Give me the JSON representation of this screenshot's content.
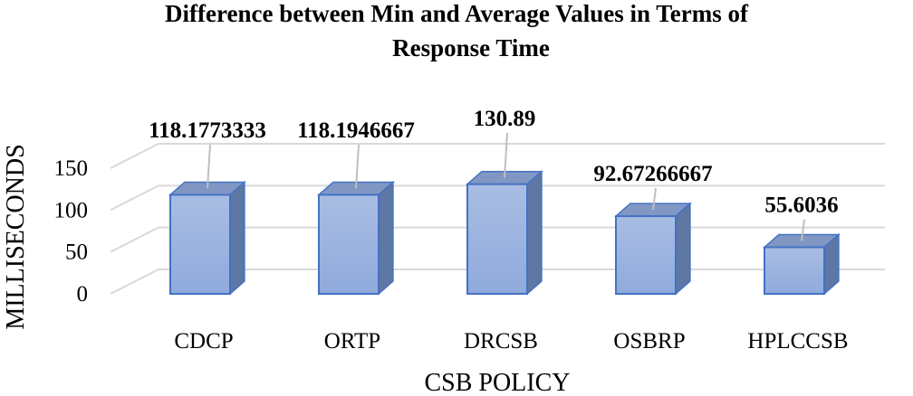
{
  "chart_data": {
    "type": "bar",
    "title_lines": [
      "Difference between Min and Average Values in Terms of",
      "Response Time"
    ],
    "categories": [
      "CDCP",
      "ORTP",
      "DRCSB",
      "OSBRP",
      "HPLCCSB"
    ],
    "values": [
      118.1773333,
      118.1946667,
      130.89,
      92.67266667,
      55.6036
    ],
    "data_labels": [
      "118.1773333",
      "118.1946667",
      "130.89",
      "92.67266667",
      "55.6036"
    ],
    "xlabel": "CSB POLICY",
    "ylabel": "MILLISECONDS",
    "ylim": [
      0,
      150
    ],
    "yticks": [
      0,
      50,
      100,
      150
    ],
    "ytick_labels": [
      "0",
      "50",
      "100",
      "150"
    ],
    "grid": true,
    "style": "3d-column"
  },
  "colors": {
    "bar_front": "#8faadc",
    "bar_front_light": "#a9bde3",
    "bar_side": "#5f77a3",
    "bar_top": "#8197c3",
    "bar_edge": "#4472c4",
    "grid": "#d9d9d9",
    "leader": "#bfbfbf"
  }
}
